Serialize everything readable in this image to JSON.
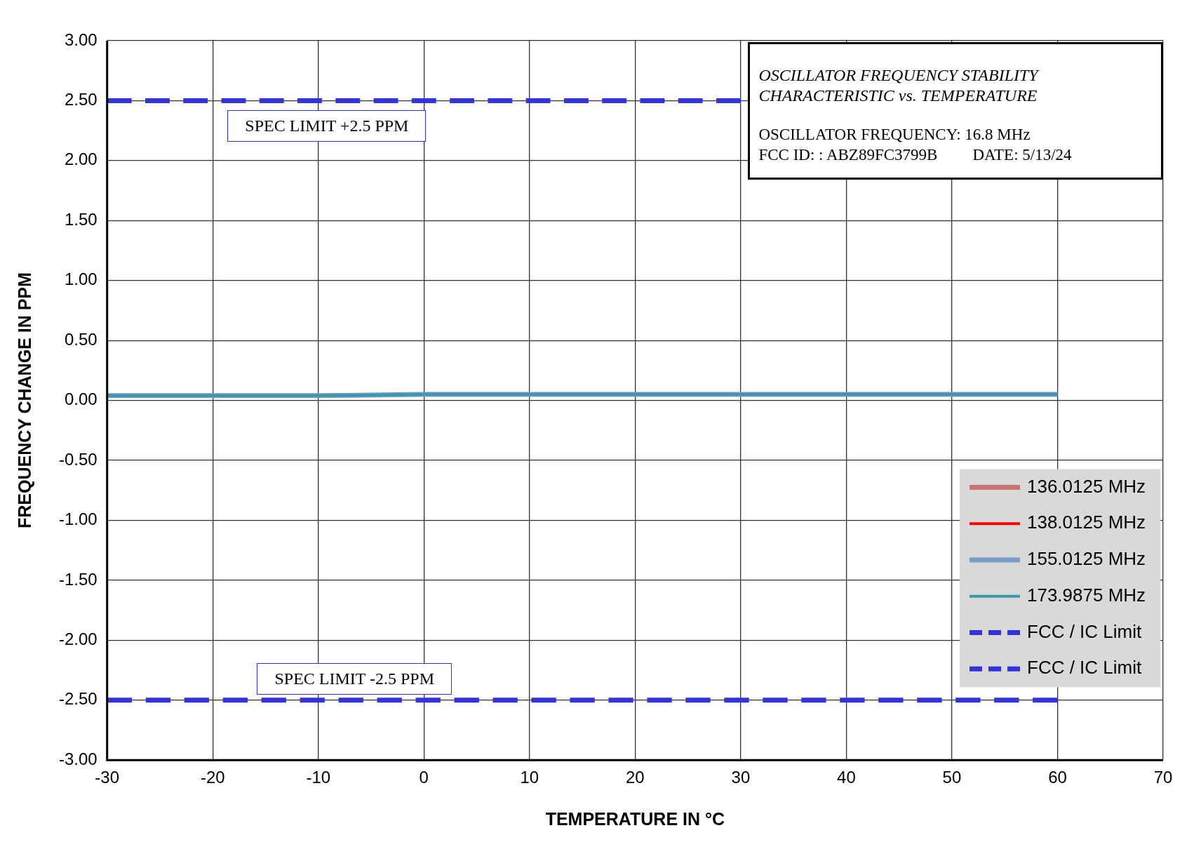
{
  "chart_data": {
    "type": "line",
    "title": "OSCILLATOR FREQUENCY STABILITY CHARACTERISTIC vs. TEMPERATURE",
    "xlabel": "TEMPERATURE IN °C",
    "ylabel": "FREQUENCY CHANGE IN PPM",
    "x": [
      -30,
      -20,
      -10,
      0,
      10,
      20,
      30,
      40,
      50,
      60
    ],
    "series": [
      {
        "name": "136.0125 MHz",
        "color": "#c87474",
        "values": [
          null,
          null,
          null,
          null,
          null,
          null,
          null,
          null,
          null,
          null
        ]
      },
      {
        "name": "138.0125 MHz",
        "color": "#ff0000",
        "values": [
          null,
          null,
          null,
          null,
          null,
          null,
          null,
          null,
          null,
          null
        ]
      },
      {
        "name": "155.0125 MHz",
        "color": "#7b9cc8",
        "values": [
          0.04,
          0.04,
          0.04,
          0.05,
          0.05,
          0.05,
          0.05,
          0.05,
          0.05,
          0.05
        ]
      },
      {
        "name": "173.9875 MHz",
        "color": "#3a98ae",
        "values": [
          0.04,
          0.04,
          0.04,
          0.05,
          0.05,
          0.05,
          0.05,
          0.05,
          0.05,
          0.05
        ]
      },
      {
        "name": "FCC / IC Limit",
        "color": "#3333dd",
        "line_style": "dashed",
        "x": [
          -30,
          30
        ],
        "values": [
          2.5,
          2.5
        ]
      },
      {
        "name": "FCC / IC Limit",
        "color": "#3333dd",
        "line_style": "dashed",
        "x": [
          -30,
          60
        ],
        "values": [
          -2.5,
          -2.5
        ]
      }
    ],
    "xlim": [
      -30,
      70
    ],
    "xticks": [
      -30,
      -20,
      -10,
      0,
      10,
      20,
      30,
      40,
      50,
      60,
      70
    ],
    "ylim": [
      -3,
      3
    ],
    "yticks": [
      {
        "value": -3,
        "label": "-3.00"
      },
      {
        "value": -2.5,
        "label": "-2.50"
      },
      {
        "value": -2,
        "label": "-2.00"
      },
      {
        "value": -1.5,
        "label": "-1.50"
      },
      {
        "value": -1,
        "label": "-1.00"
      },
      {
        "value": -0.5,
        "label": "-0.50"
      },
      {
        "value": 0,
        "label": "0.00"
      },
      {
        "value": 0.5,
        "label": "0.50"
      },
      {
        "value": 1,
        "label": "1.00"
      },
      {
        "value": 1.5,
        "label": "1.50"
      },
      {
        "value": 2,
        "label": "2.00"
      },
      {
        "value": 2.5,
        "label": "2.50"
      },
      {
        "value": 3,
        "label": "3.00"
      }
    ],
    "grid": true,
    "legend": "bottom right",
    "marker": "none",
    "line_style": "solid",
    "annotations": [
      "SPEC LIMIT +2.5 PPM",
      "SPEC LIMIT -2.5 PPM",
      "OSCILLATOR FREQUENCY: 16.8 MHz",
      "FCC ID: : ABZ89FC3799B",
      "DATE: 5/13/24"
    ]
  }
}
